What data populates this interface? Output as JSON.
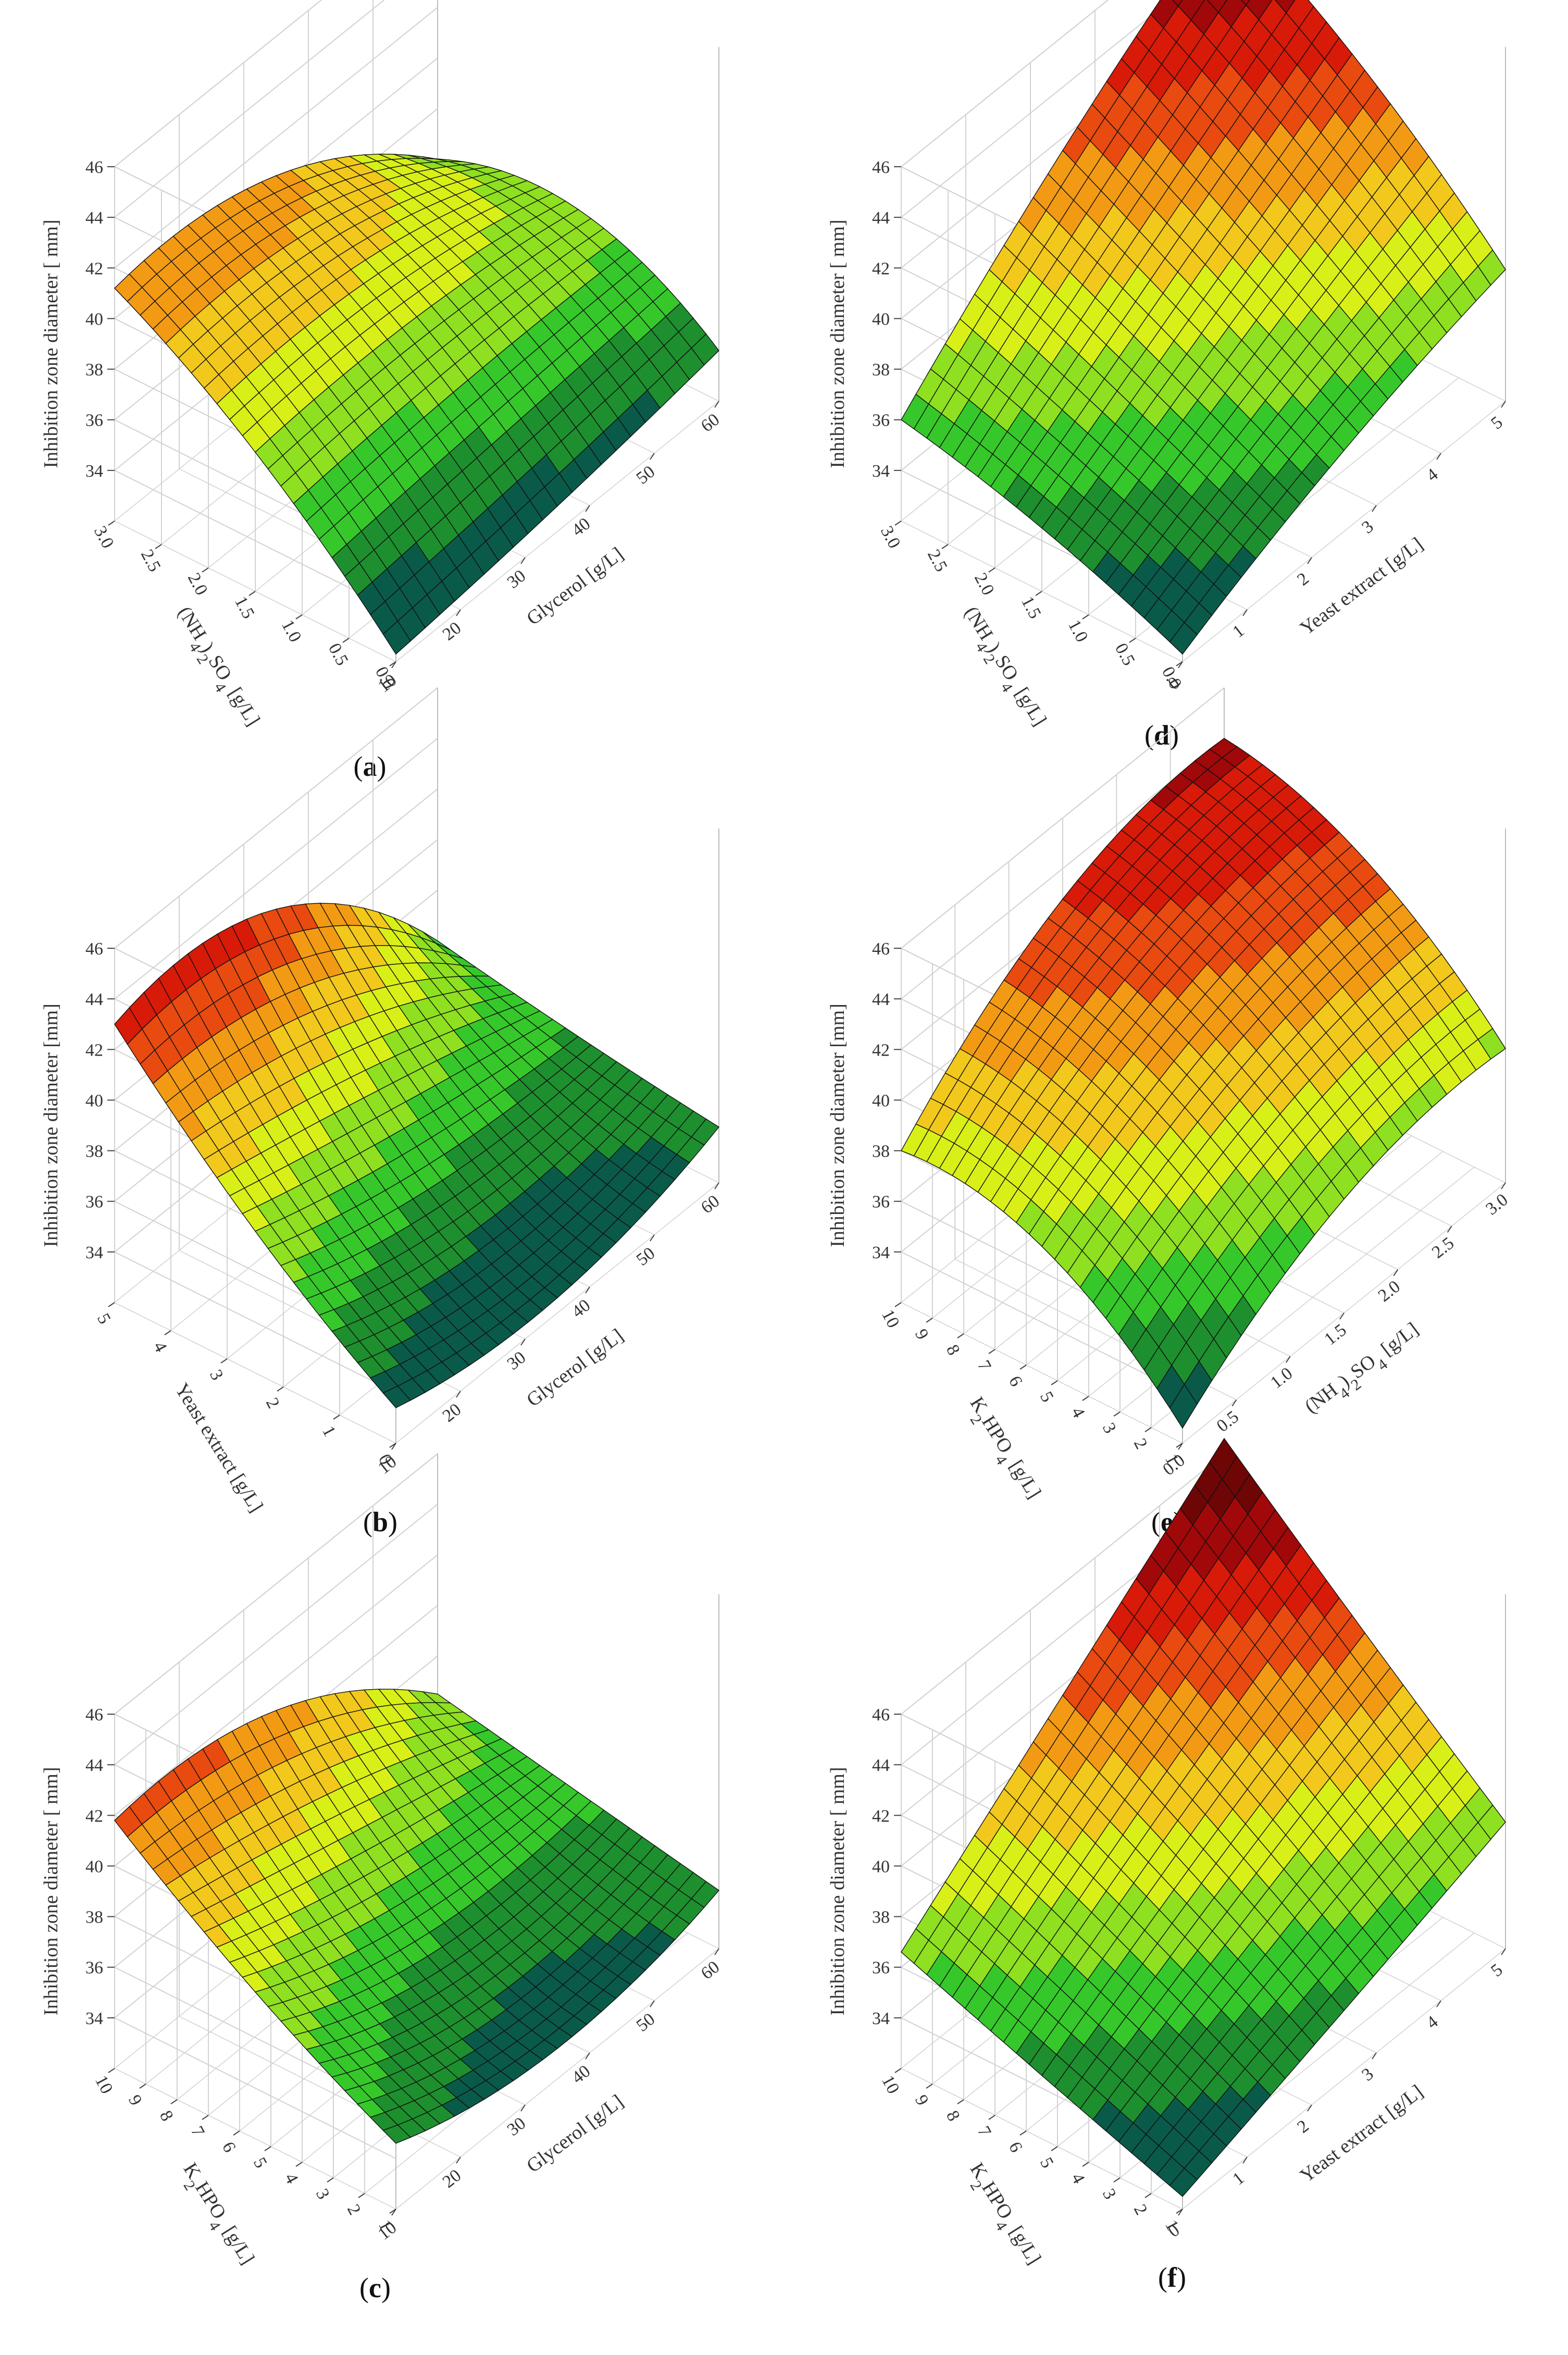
{
  "figure": {
    "colors": {
      "levels": [
        "#0a5a4a",
        "#1e8f2e",
        "#36c82a",
        "#8ee020",
        "#d8f018",
        "#f2c81c",
        "#f39a14",
        "#e84a10",
        "#d81a08",
        "#a0080a",
        "#6e0606"
      ],
      "grid": "#d2d2d2",
      "mesh": "#101010"
    },
    "icons": [
      "3d-response-surface-plots"
    ]
  },
  "chart_data": [
    {
      "panel": "a",
      "type": "surface",
      "caption": "(a)",
      "caption_parts": [
        "(",
        "a",
        ")"
      ],
      "zlabel": "Inhibition zone diameter [ mm]",
      "xlabel": "Glycerol [g/L]",
      "ylabel_parts": [
        "(NH",
        "4",
        ")",
        "2",
        "SO",
        "4",
        " [g/L]"
      ],
      "xticks": [
        "10",
        "20",
        "30",
        "40",
        "50",
        "60"
      ],
      "yticks": [
        "0.0",
        "0.5",
        "1.0",
        "1.5",
        "2.0",
        "2.5",
        "3.0"
      ],
      "zticks": [
        "34",
        "36",
        "38",
        "40",
        "42",
        "44",
        "46"
      ],
      "zlim": [
        32,
        46
      ],
      "corners": {
        "x_min_y_min": 32.3,
        "x_max_y_min": 34.0,
        "x_min_y_max": 41.2,
        "x_max_y_max": 36.0
      },
      "mid": {
        "x_mid_y_min": 33.0,
        "x_mid_y_max": 40.5,
        "x_min_y_mid": 37.5,
        "x_max_y_mid": 36.8
      },
      "center": 37.7
    },
    {
      "panel": "b",
      "type": "surface",
      "caption": "(b)",
      "caption_parts": [
        "(",
        "b",
        ")"
      ],
      "zlabel": "Inhibition zone diameter  [mm]",
      "xlabel": "Glycerol [g/L]",
      "ylabel_parts": [
        "Yeast extract [g/L]"
      ],
      "xticks": [
        "10",
        "20",
        "30",
        "40",
        "50",
        "60"
      ],
      "yticks": [
        "0",
        "1",
        "2",
        "3",
        "4",
        "5"
      ],
      "zticks": [
        "34",
        "36",
        "38",
        "40",
        "42",
        "44",
        "46"
      ],
      "zlim": [
        32,
        46
      ],
      "corners": {
        "x_min_y_min": 33.4,
        "x_max_y_min": 34.2,
        "x_min_y_max": 43.0,
        "x_max_y_max": 36.0
      },
      "mid": {
        "x_mid_y_min": 32.6,
        "x_mid_y_max": 42.4,
        "x_min_y_mid": 37.6,
        "x_max_y_mid": 35.0
      },
      "center": 35.8
    },
    {
      "panel": "c",
      "type": "surface",
      "caption": "(c)",
      "caption_parts": [
        "(",
        "c",
        ")"
      ],
      "zlabel": "Inhibition zone diameter [ mm]",
      "xlabel": "Glycerol [g/L]",
      "ylabel_parts": [
        "K",
        "2",
        "HPO",
        "4",
        " [g/L]"
      ],
      "xticks": [
        "10",
        "20",
        "30",
        "40",
        "50",
        "60"
      ],
      "yticks": [
        "1",
        "2",
        "3",
        "4",
        "5",
        "6",
        "7",
        "8",
        "9",
        "10"
      ],
      "zticks": [
        "34",
        "36",
        "38",
        "40",
        "42",
        "44",
        "46"
      ],
      "zlim": [
        32,
        46
      ],
      "corners": {
        "x_min_y_min": 34.6,
        "x_max_y_min": 34.3,
        "x_min_y_max": 41.8,
        "x_max_y_max": 36.5
      },
      "mid": {
        "x_mid_y_min": 33.2,
        "x_mid_y_max": 41.0,
        "x_min_y_mid": 37.8,
        "x_max_y_mid": 35.4
      },
      "center": 35.6
    },
    {
      "panel": "d",
      "type": "surface",
      "caption": "(d)",
      "caption_parts": [
        "(",
        "d",
        ")"
      ],
      "zlabel": "Inhibition zone diameter [  mm]",
      "xlabel": "Yeast extract [g/L]",
      "ylabel_parts": [
        "(NH",
        "4",
        ")",
        "2",
        "SO",
        "4",
        " [g/L]"
      ],
      "xticks": [
        "0",
        "1",
        "2",
        "3",
        "4",
        "5"
      ],
      "yticks": [
        "0.0",
        "0.5",
        "1.0",
        "1.5",
        "2.0",
        "2.5",
        "3.0"
      ],
      "zticks": [
        "34",
        "36",
        "38",
        "40",
        "42",
        "44",
        "46"
      ],
      "zlim": [
        32,
        46
      ],
      "corners": {
        "x_min_y_min": 32.3,
        "x_max_y_min": 37.2,
        "x_min_y_max": 36.0,
        "x_max_y_max": 46.0
      },
      "mid": {
        "x_mid_y_min": 35.2,
        "x_mid_y_max": 41.5,
        "x_min_y_mid": 34.5,
        "x_max_y_mid": 42.3
      },
      "center": 38.4
    },
    {
      "panel": "e",
      "type": "surface",
      "caption": "(e)",
      "caption_parts": [
        "(",
        "e",
        ")"
      ],
      "zlabel": "Inhibition zone diameter [mm]",
      "xlabel_parts": [
        "(NH",
        "4",
        ")",
        "2",
        "SO",
        "4",
        " [g/L]"
      ],
      "ylabel_parts": [
        "K",
        "2",
        "HPO",
        "4",
        " [g/L]"
      ],
      "xticks": [
        "0.0",
        "0.5",
        "1.0",
        "1.5",
        "2.0",
        "2.5",
        "3.0"
      ],
      "yticks": [
        "1",
        "2",
        "3",
        "4",
        "5",
        "6",
        "7",
        "8",
        "9",
        "10"
      ],
      "zticks": [
        "34",
        "36",
        "38",
        "40",
        "42",
        "44",
        "46"
      ],
      "zlim": [
        32,
        46
      ],
      "corners": {
        "x_min_y_min": 32.6,
        "x_max_y_min": 37.3,
        "x_min_y_max": 38.0,
        "x_max_y_max": 44.0
      },
      "mid": {
        "x_mid_y_min": 36.5,
        "x_mid_y_max": 42.8,
        "x_min_y_mid": 37.0,
        "x_max_y_mid": 42.0
      },
      "center": 40.6
    },
    {
      "panel": "f",
      "type": "surface",
      "caption": "(f)",
      "caption_parts": [
        "(",
        "f",
        ")"
      ],
      "zlabel": "Inhibition zone diameter [  mm]",
      "xlabel": "Yeast extract [g/L]",
      "ylabel_parts": [
        "K",
        "2",
        "HPO",
        "4",
        " [g/L]"
      ],
      "xticks": [
        "0",
        "1",
        "2",
        "3",
        "4",
        "5"
      ],
      "yticks": [
        "1",
        "2",
        "3",
        "4",
        "5",
        "6",
        "7",
        "8",
        "9",
        "10"
      ],
      "zticks": [
        "34",
        "36",
        "38",
        "40",
        "42",
        "44",
        "46"
      ],
      "zlim": [
        32,
        46
      ],
      "corners": {
        "x_min_y_min": 32.5,
        "x_max_y_min": 37.0,
        "x_min_y_max": 36.6,
        "x_max_y_max": 46.6
      },
      "mid": {
        "x_mid_y_min": 34.7,
        "x_mid_y_max": 41.6,
        "x_min_y_mid": 34.5,
        "x_max_y_mid": 41.7
      },
      "center": 38.3
    }
  ]
}
